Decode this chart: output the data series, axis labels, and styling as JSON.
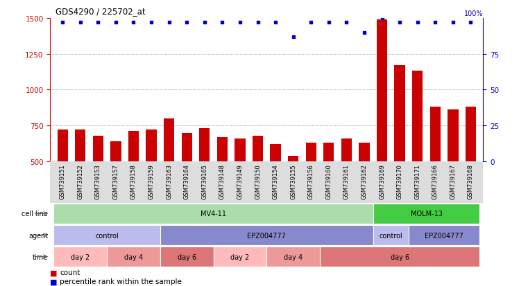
{
  "title": "GDS4290 / 225702_at",
  "samples": [
    "GSM739151",
    "GSM739152",
    "GSM739153",
    "GSM739157",
    "GSM739158",
    "GSM739159",
    "GSM739163",
    "GSM739164",
    "GSM739165",
    "GSM739148",
    "GSM739149",
    "GSM739150",
    "GSM739154",
    "GSM739155",
    "GSM739156",
    "GSM739160",
    "GSM739161",
    "GSM739162",
    "GSM739169",
    "GSM739170",
    "GSM739171",
    "GSM739166",
    "GSM739167",
    "GSM739168"
  ],
  "counts": [
    720,
    720,
    680,
    640,
    710,
    720,
    800,
    700,
    730,
    670,
    660,
    680,
    620,
    540,
    630,
    630,
    660,
    630,
    1490,
    1170,
    1130,
    880,
    860,
    880
  ],
  "percentile_ranks": [
    97,
    97,
    97,
    97,
    97,
    97,
    97,
    97,
    97,
    97,
    97,
    97,
    97,
    87,
    97,
    97,
    97,
    90,
    100,
    97,
    97,
    97,
    97,
    97
  ],
  "bar_color": "#cc0000",
  "dot_color": "#0000cc",
  "ylim_left": [
    500,
    1500
  ],
  "ylim_right": [
    0,
    100
  ],
  "yticks_left": [
    500,
    750,
    1000,
    1250,
    1500
  ],
  "yticks_right": [
    0,
    25,
    50,
    75,
    100
  ],
  "grid_values": [
    750,
    1000,
    1250
  ],
  "cell_line_groups": [
    {
      "label": "MV4-11",
      "start": 0,
      "end": 18,
      "color": "#aaddaa"
    },
    {
      "label": "MOLM-13",
      "start": 18,
      "end": 24,
      "color": "#44cc44"
    }
  ],
  "agent_groups": [
    {
      "label": "control",
      "start": 0,
      "end": 6,
      "color": "#bbbbee"
    },
    {
      "label": "EPZ004777",
      "start": 6,
      "end": 18,
      "color": "#8888cc"
    },
    {
      "label": "control",
      "start": 18,
      "end": 20,
      "color": "#bbbbee"
    },
    {
      "label": "EPZ004777",
      "start": 20,
      "end": 24,
      "color": "#8888cc"
    }
  ],
  "time_groups": [
    {
      "label": "day 2",
      "start": 0,
      "end": 3,
      "color": "#ffbbbb"
    },
    {
      "label": "day 4",
      "start": 3,
      "end": 6,
      "color": "#ee9999"
    },
    {
      "label": "day 6",
      "start": 6,
      "end": 9,
      "color": "#dd7777"
    },
    {
      "label": "day 2",
      "start": 9,
      "end": 12,
      "color": "#ffbbbb"
    },
    {
      "label": "day 4",
      "start": 12,
      "end": 15,
      "color": "#ee9999"
    },
    {
      "label": "day 6",
      "start": 15,
      "end": 24,
      "color": "#dd7777"
    }
  ],
  "xtick_bg_color": "#dddddd",
  "legend_count_color": "#cc0000",
  "legend_dot_color": "#0000cc",
  "background_color": "#ffffff",
  "bar_width": 0.6,
  "row_label_color": "#666666"
}
